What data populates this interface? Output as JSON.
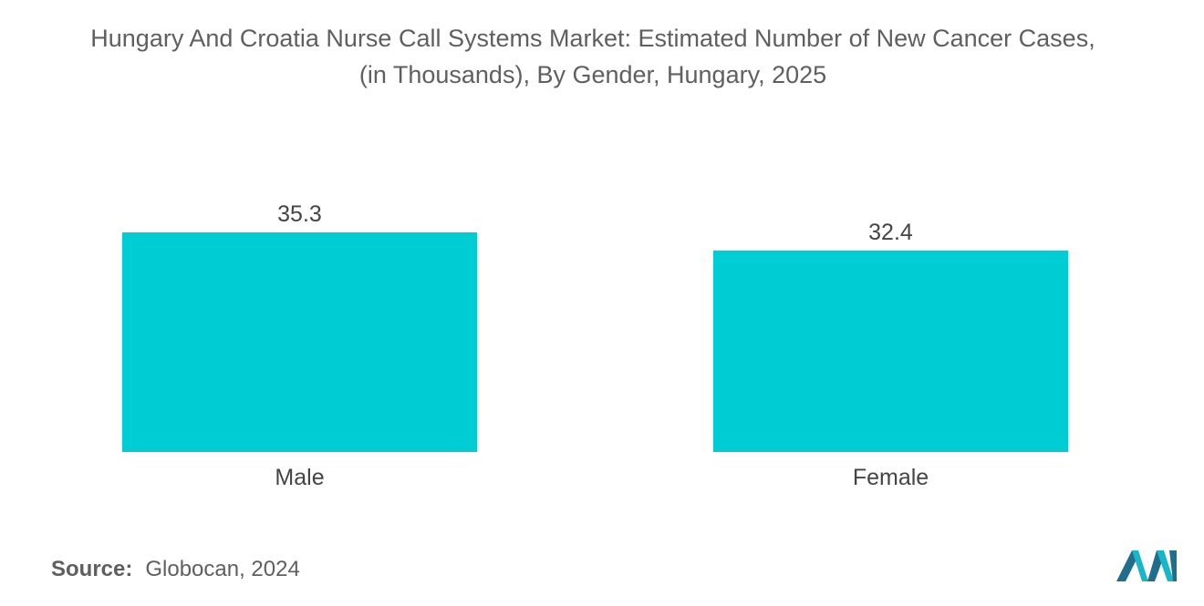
{
  "title": {
    "line1": "Hungary And Croatia Nurse Call Systems Market: Estimated Number of New Cancer Cases,",
    "line2": "(in Thousands), By Gender, Hungary, 2025"
  },
  "source": {
    "label": "Source:",
    "value": "Globocan, 2024"
  },
  "colors": {
    "bar": "#00cdd3",
    "text": "#555555",
    "logo_dark": "#1f6e8c",
    "logo_light": "#19b6c8"
  },
  "chart_data": {
    "type": "bar",
    "categories": [
      "Male",
      "Female"
    ],
    "values": [
      35.3,
      32.4
    ],
    "data_labels": [
      "35.3",
      "32.4"
    ],
    "title": "Hungary And Croatia Nurse Call Systems Market: Estimated Number of New Cancer Cases, (in Thousands), By Gender, Hungary, 2025",
    "xlabel": "",
    "ylabel": "",
    "ylim": [
      0,
      35.3
    ],
    "grid": false,
    "legend": "none"
  }
}
